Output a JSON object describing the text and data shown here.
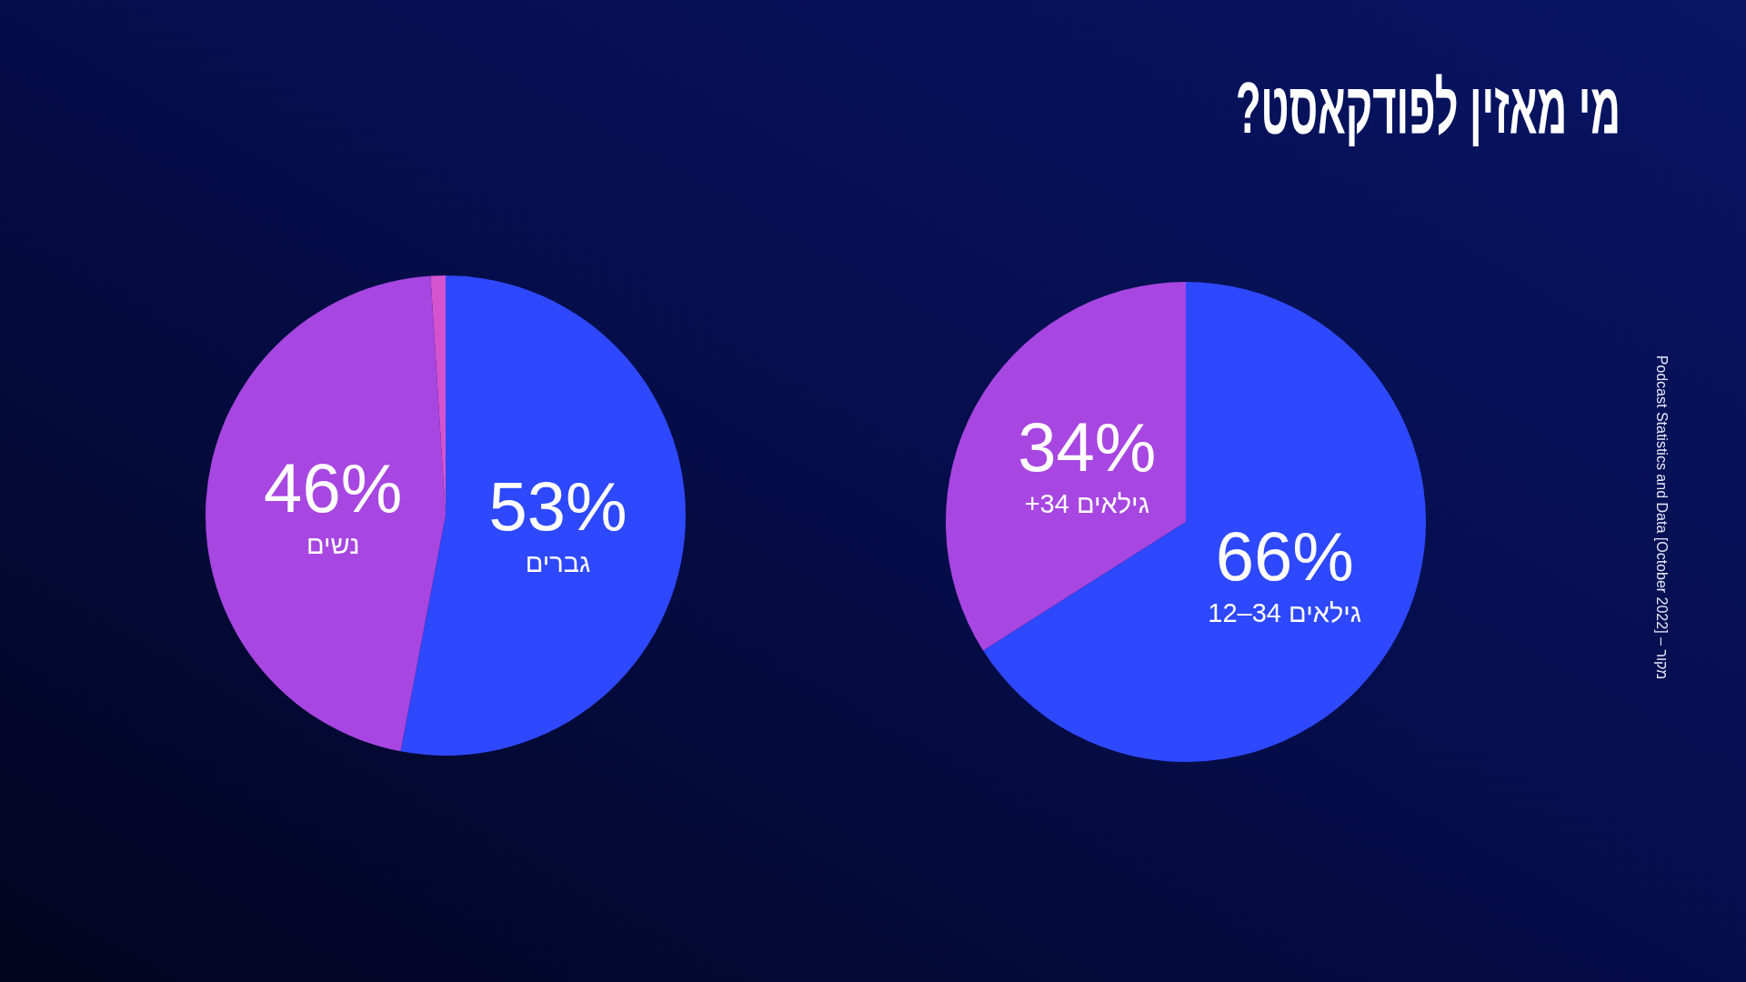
{
  "chart_data": [
    {
      "type": "pie",
      "title": "מי מאזין לפודקאסט?",
      "categories": [
        "גילאים 12–34",
        "גילאים 34+"
      ],
      "values": [
        66,
        34
      ],
      "colors": [
        "#2e48fe",
        "#a746e1"
      ],
      "value_labels": [
        "66%",
        "34%"
      ],
      "annotations": [
        "מקור – Podcast Statistics and Data [October 2022]"
      ]
    },
    {
      "type": "pie",
      "categories": [
        "גברים",
        "נשים",
        null
      ],
      "values": [
        53,
        46,
        1
      ],
      "colors": [
        "#2e48fe",
        "#a746e1",
        "#d653d0"
      ],
      "value_labels": [
        "53%",
        "46%",
        null
      ]
    }
  ]
}
